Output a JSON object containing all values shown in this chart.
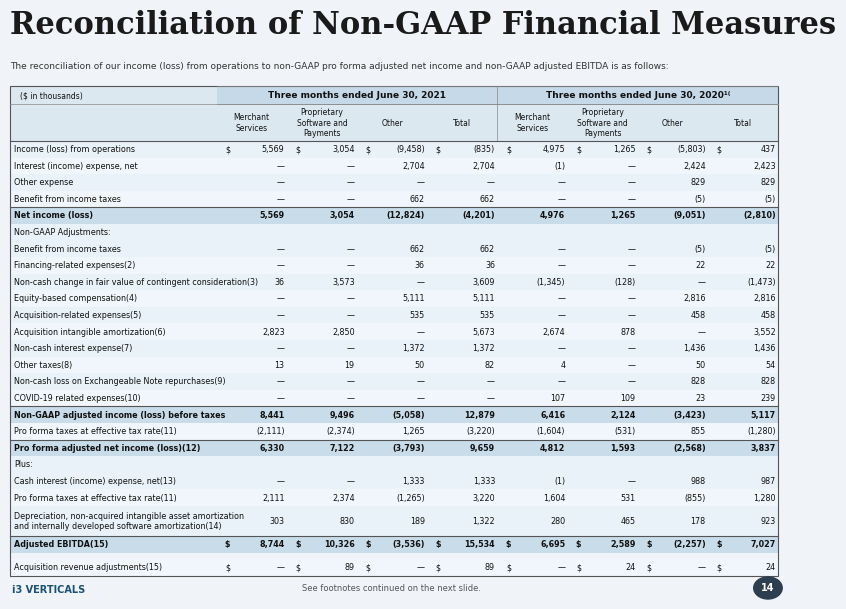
{
  "title": "Reconciliation of Non-GAAP Financial Measures",
  "subtitle": "The reconciliation of our income (loss) from operations to non-GAAP pro forma adjusted net income and non-GAAP adjusted EBITDA is as follows:",
  "bg_color": "#f0f4f8",
  "header_bg": "#c5d9e8",
  "col_header_bg": "#dce8f0",
  "row_colors": [
    "#e8f2f8",
    "#f5f9fc"
  ],
  "bold_row_color": "#d0e4ef",
  "section_row_color": "#f0f6fa",
  "col_headers_top": [
    "($ in thousands)",
    "Three months ended June 30, 2021",
    "",
    "",
    "",
    "Three months ended June 30, 2020(1)",
    "",
    "",
    ""
  ],
  "col_headers_sub": [
    "",
    "Merchant\nServices",
    "Proprietary\nSoftware and\nPayments",
    "Other",
    "Total",
    "Merchant\nServices",
    "Proprietary\nSoftware and\nPayments",
    "Other",
    "Total"
  ],
  "rows": [
    {
      "label": "Income (loss) from operations",
      "vals": [
        "$",
        "5,569",
        "$",
        "3,054",
        "$",
        "(9,458)",
        "$",
        "(835)",
        "$",
        "4,975",
        "$",
        "1,265",
        "$",
        "(5,803)",
        "$",
        "437"
      ],
      "bold": false,
      "dollar": true,
      "top_border": true
    },
    {
      "label": "Interest (income) expense, net",
      "vals": [
        "",
        "—",
        "",
        "—",
        "",
        "2,704",
        "",
        "2,704",
        "",
        "(1)",
        "",
        "—",
        "",
        "2,424",
        "",
        "2,423"
      ],
      "bold": false,
      "dollar": false
    },
    {
      "label": "Other expense",
      "vals": [
        "",
        "—",
        "",
        "—",
        "",
        "—",
        "",
        "—",
        "",
        "—",
        "",
        "—",
        "",
        "829",
        "",
        "829"
      ],
      "bold": false,
      "dollar": false
    },
    {
      "label": "Benefit from income taxes",
      "vals": [
        "",
        "—",
        "",
        "—",
        "",
        "662",
        "",
        "662",
        "",
        "—",
        "",
        "—",
        "",
        "(5)",
        "",
        "(5)"
      ],
      "bold": false,
      "dollar": false,
      "bottom_border": true
    },
    {
      "label": "Net income (loss)",
      "vals": [
        "",
        "5,569",
        "",
        "3,054",
        "",
        "(12,824)",
        "",
        "(4,201)",
        "",
        "4,976",
        "",
        "1,265",
        "",
        "(9,051)",
        "",
        "(2,810)"
      ],
      "bold": true
    },
    {
      "label": "Non-GAAP Adjustments:",
      "vals": [
        "",
        "",
        "",
        "",
        "",
        "",
        "",
        "",
        "",
        "",
        "",
        "",
        "",
        "",
        "",
        ""
      ],
      "bold": false,
      "section": true
    },
    {
      "label": "Benefit from income taxes",
      "vals": [
        "",
        "—",
        "",
        "—",
        "",
        "662",
        "",
        "662",
        "",
        "—",
        "",
        "—",
        "",
        "(5)",
        "",
        "(5)"
      ],
      "bold": false,
      "dollar": false
    },
    {
      "label": "Financing-related expenses(2)",
      "vals": [
        "",
        "—",
        "",
        "—",
        "",
        "36",
        "",
        "36",
        "",
        "—",
        "",
        "—",
        "",
        "22",
        "",
        "22"
      ],
      "bold": false,
      "dollar": false
    },
    {
      "label": "Non-cash change in fair value of contingent consideration(3)",
      "vals": [
        "",
        "36",
        "",
        "3,573",
        "",
        "—",
        "",
        "3,609",
        "",
        "(1,345)",
        "",
        "(128)",
        "",
        "—",
        "",
        "(1,473)"
      ],
      "bold": false,
      "dollar": false
    },
    {
      "label": "Equity-based compensation(4)",
      "vals": [
        "",
        "—",
        "",
        "—",
        "",
        "5,111",
        "",
        "5,111",
        "",
        "—",
        "",
        "—",
        "",
        "2,816",
        "",
        "2,816"
      ],
      "bold": false,
      "dollar": false
    },
    {
      "label": "Acquisition-related expenses(5)",
      "vals": [
        "",
        "—",
        "",
        "—",
        "",
        "535",
        "",
        "535",
        "",
        "—",
        "",
        "—",
        "",
        "458",
        "",
        "458"
      ],
      "bold": false,
      "dollar": false
    },
    {
      "label": "Acquisition intangible amortization(6)",
      "vals": [
        "",
        "2,823",
        "",
        "2,850",
        "",
        "—",
        "",
        "5,673",
        "",
        "2,674",
        "",
        "878",
        "",
        "—",
        "",
        "3,552"
      ],
      "bold": false,
      "dollar": false
    },
    {
      "label": "Non-cash interest expense(7)",
      "vals": [
        "",
        "—",
        "",
        "—",
        "",
        "1,372",
        "",
        "1,372",
        "",
        "—",
        "",
        "—",
        "",
        "1,436",
        "",
        "1,436"
      ],
      "bold": false,
      "dollar": false
    },
    {
      "label": "Other taxes(8)",
      "vals": [
        "",
        "13",
        "",
        "19",
        "",
        "50",
        "",
        "82",
        "",
        "4",
        "",
        "—",
        "",
        "50",
        "",
        "54"
      ],
      "bold": false,
      "dollar": false
    },
    {
      "label": "Non-cash loss on Exchangeable Note repurchases(9)",
      "vals": [
        "",
        "—",
        "",
        "—",
        "",
        "—",
        "",
        "—",
        "",
        "—",
        "",
        "—",
        "",
        "828",
        "",
        "828"
      ],
      "bold": false,
      "dollar": false
    },
    {
      "label": "COVID-19 related expenses(10)",
      "vals": [
        "",
        "—",
        "",
        "—",
        "",
        "—",
        "",
        "—",
        "",
        "107",
        "",
        "109",
        "",
        "23",
        "",
        "239"
      ],
      "bold": false,
      "dollar": false,
      "bottom_border": true
    },
    {
      "label": "Non-GAAP adjusted income (loss) before taxes",
      "vals": [
        "",
        "8,441",
        "",
        "9,496",
        "",
        "(5,058)",
        "",
        "12,879",
        "",
        "6,416",
        "",
        "2,124",
        "",
        "(3,423)",
        "",
        "5,117"
      ],
      "bold": true
    },
    {
      "label": "Pro forma taxes at effective tax rate(11)",
      "vals": [
        "",
        "(2,111)",
        "",
        "(2,374)",
        "",
        "1,265",
        "",
        "(3,220)",
        "",
        "(1,604)",
        "",
        "(531)",
        "",
        "855",
        "",
        "(1,280)"
      ],
      "bold": false,
      "dollar": false,
      "bottom_border": true
    },
    {
      "label": "Pro forma adjusted net income (loss)(12)",
      "vals": [
        "",
        "6,330",
        "",
        "7,122",
        "",
        "(3,793)",
        "",
        "9,659",
        "",
        "4,812",
        "",
        "1,593",
        "",
        "(2,568)",
        "",
        "3,837"
      ],
      "bold": true
    },
    {
      "label": "Plus:",
      "vals": [
        "",
        "",
        "",
        "",
        "",
        "",
        "",
        "",
        "",
        "",
        "",
        "",
        "",
        "",
        "",
        ""
      ],
      "bold": false,
      "section": true
    },
    {
      "label": "Cash interest (income) expense, net(13)",
      "vals": [
        "",
        "—",
        "",
        "—",
        "",
        "1,333",
        "",
        "1,333",
        "",
        "(1)",
        "",
        "—",
        "",
        "988",
        "",
        "987"
      ],
      "bold": false,
      "dollar": false
    },
    {
      "label": "Pro forma taxes at effective tax rate(11)",
      "vals": [
        "",
        "2,111",
        "",
        "2,374",
        "",
        "(1,265)",
        "",
        "3,220",
        "",
        "1,604",
        "",
        "531",
        "",
        "(855)",
        "",
        "1,280"
      ],
      "bold": false,
      "dollar": false
    },
    {
      "label": "Depreciation, non-acquired intangible asset amortization\nand internally developed software amortization(14)",
      "vals": [
        "",
        "303",
        "",
        "830",
        "",
        "189",
        "",
        "1,322",
        "",
        "280",
        "",
        "465",
        "",
        "178",
        "",
        "923"
      ],
      "bold": false,
      "dollar": false,
      "multiline": true
    },
    {
      "label": "Adjusted EBITDA(15)",
      "vals": [
        "$",
        "8,744",
        "$",
        "10,326",
        "$",
        "(3,536)",
        "$",
        "15,534",
        "$",
        "6,695",
        "$",
        "2,589",
        "$",
        "(2,257)",
        "$",
        "7,027"
      ],
      "bold": true,
      "dollar": true,
      "top_border": true
    },
    {
      "label": "",
      "vals": [
        "",
        "",
        "",
        "",
        "",
        "",
        "",
        "",
        "",
        "",
        "",
        "",
        "",
        "",
        "",
        ""
      ],
      "bold": false,
      "section": true
    },
    {
      "label": "Acquisition revenue adjustments(15)",
      "vals": [
        "$",
        "—",
        "$",
        "89",
        "$",
        "—",
        "$",
        "89",
        "$",
        "—",
        "$",
        "24",
        "$",
        "—",
        "$",
        "24"
      ],
      "bold": false,
      "dollar": true
    }
  ]
}
